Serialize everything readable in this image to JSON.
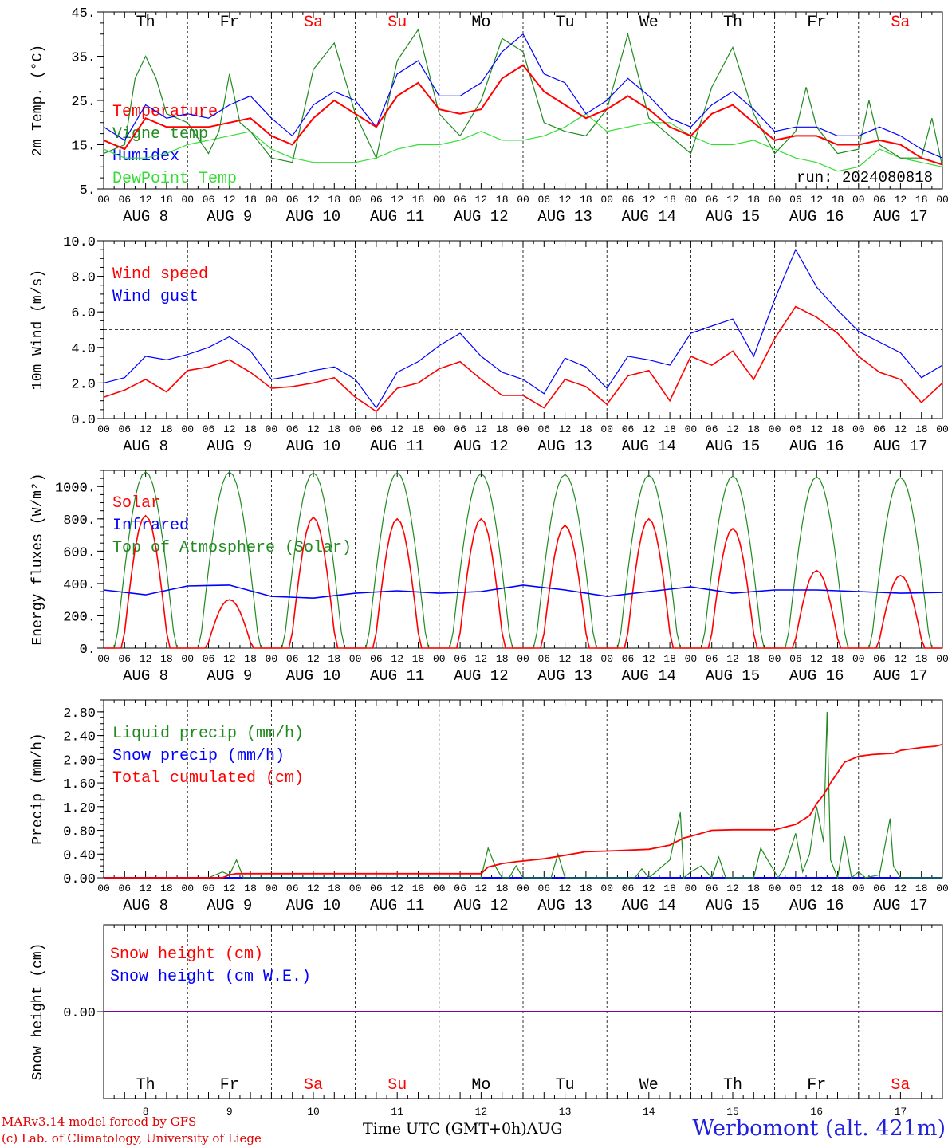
{
  "run_label": "run: 2024080818",
  "days": {
    "names": [
      "Th",
      "Fr",
      "Sa",
      "Su",
      "Mo",
      "Tu",
      "We",
      "Th",
      "Fr",
      "Sa"
    ],
    "weekend_flags": [
      false,
      false,
      true,
      true,
      false,
      false,
      false,
      false,
      false,
      true
    ],
    "date_labels": [
      "AUG  8",
      "AUG  9",
      "AUG 10",
      "AUG 11",
      "AUG 12",
      "AUG 13",
      "AUG 14",
      "AUG 15",
      "AUG 16",
      "AUG 17"
    ],
    "day_numbers": [
      "8",
      "9",
      "10",
      "11",
      "12",
      "13",
      "14",
      "15",
      "16",
      "17"
    ],
    "hour_ticks": [
      "00",
      "06",
      "12",
      "18"
    ],
    "final_hour": "00"
  },
  "colors": {
    "red": "#ff0000",
    "darkgreen": "#1f8a1f",
    "blue": "#0000ff",
    "lightgreen": "#33dd33",
    "purple": "#8000a0"
  },
  "footer": {
    "model": "MARv3.14 model forced by GFS",
    "copyright": "(c) Lab. of Climatology, University of Liege",
    "xaxis": "Time UTC (GMT+0h)",
    "month": "AUG",
    "station": "Werbomont (alt. 421m)"
  },
  "chart_data": [
    {
      "type": "line",
      "ylabel": "2m Temp. (°C)",
      "ylim": [
        5,
        45
      ],
      "yticks": [
        "5.",
        "15.",
        "25.",
        "35.",
        "45."
      ],
      "x_units": "hours since AUG 8 00 UTC",
      "series": [
        {
          "name": "Temperature",
          "color": "red",
          "x": [
            0,
            6,
            12,
            18,
            24,
            30,
            36,
            42,
            48,
            54,
            60,
            66,
            72,
            78,
            84,
            90,
            96,
            102,
            108,
            114,
            120,
            126,
            132,
            138,
            144,
            150,
            156,
            162,
            168,
            174,
            180,
            186,
            192,
            198,
            204,
            210,
            216,
            222,
            228,
            234,
            240
          ],
          "y": [
            16,
            14,
            21,
            19,
            19,
            19,
            20,
            21,
            17,
            15,
            21,
            25,
            22,
            19,
            26,
            29,
            23,
            22,
            23,
            30,
            33,
            27,
            24,
            21,
            23,
            26,
            23,
            19,
            17,
            22,
            24,
            20,
            16,
            17,
            17,
            15,
            15,
            16,
            15,
            12,
            10.5
          ]
        },
        {
          "name": "Vigne temp",
          "color": "darkgreen",
          "x": [
            0,
            6,
            9,
            12,
            15,
            18,
            24,
            30,
            33,
            36,
            39,
            42,
            48,
            54,
            60,
            66,
            72,
            78,
            84,
            90,
            96,
            102,
            108,
            114,
            120,
            126,
            132,
            138,
            144,
            150,
            156,
            162,
            168,
            174,
            180,
            186,
            192,
            198,
            201,
            204,
            210,
            216,
            219,
            222,
            228,
            234,
            237,
            240
          ],
          "y": [
            13,
            15,
            30,
            35,
            30,
            22,
            20,
            13,
            18,
            31,
            20,
            18,
            12,
            11,
            32,
            38,
            22,
            12,
            34,
            41,
            22,
            17,
            25,
            39,
            36,
            20,
            18,
            17,
            23,
            40,
            21,
            17,
            13,
            28,
            37,
            22,
            13,
            18,
            28,
            19,
            13,
            14,
            25,
            15,
            12,
            12,
            21,
            10
          ]
        },
        {
          "name": "Humidex",
          "color": "blue",
          "x": [
            0,
            6,
            12,
            18,
            24,
            30,
            36,
            42,
            48,
            54,
            60,
            66,
            72,
            78,
            84,
            90,
            96,
            102,
            108,
            114,
            120,
            126,
            132,
            138,
            144,
            150,
            156,
            162,
            168,
            174,
            180,
            186,
            192,
            198,
            204,
            210,
            216,
            222,
            228,
            234,
            240
          ],
          "y": [
            19,
            16,
            24,
            21,
            22,
            21,
            24,
            26,
            21,
            17,
            24,
            27,
            25,
            19,
            31,
            34,
            26,
            26,
            29,
            36,
            40,
            31,
            29,
            22,
            25,
            30,
            26,
            21,
            19,
            24,
            27,
            23,
            18,
            19,
            19,
            17,
            17,
            19,
            17,
            14,
            12
          ]
        },
        {
          "name": "DewPoint Temp",
          "color": "lightgreen",
          "x": [
            0,
            6,
            12,
            18,
            24,
            30,
            36,
            42,
            48,
            54,
            60,
            66,
            72,
            78,
            84,
            90,
            96,
            102,
            108,
            114,
            120,
            126,
            132,
            138,
            144,
            150,
            156,
            162,
            168,
            174,
            180,
            186,
            192,
            198,
            204,
            210,
            216,
            222,
            228,
            234,
            240
          ],
          "y": [
            14,
            12,
            12,
            13,
            15,
            16,
            17,
            18,
            14,
            12,
            11,
            11,
            11,
            12,
            14,
            15,
            15,
            16,
            18,
            16,
            16,
            17,
            19,
            22,
            18,
            19,
            20,
            20,
            17,
            15,
            15,
            16,
            14,
            12,
            11,
            9,
            10,
            14,
            12,
            11,
            10
          ]
        }
      ]
    },
    {
      "type": "line",
      "ylabel": "10m Wind (m/s)",
      "ylim": [
        0,
        10
      ],
      "yticks": [
        "0.0",
        "2.0",
        "4.0",
        "6.0",
        "8.0",
        "10.0"
      ],
      "reference_line": 5,
      "series": [
        {
          "name": "Wind speed",
          "color": "red",
          "x": [
            0,
            6,
            12,
            18,
            24,
            30,
            36,
            42,
            48,
            54,
            60,
            66,
            72,
            78,
            84,
            90,
            96,
            102,
            108,
            114,
            120,
            126,
            132,
            138,
            144,
            150,
            156,
            162,
            168,
            174,
            180,
            186,
            192,
            198,
            204,
            210,
            216,
            222,
            228,
            234,
            240
          ],
          "y": [
            1.2,
            1.6,
            2.2,
            1.5,
            2.7,
            2.9,
            3.3,
            2.6,
            1.7,
            1.8,
            2.0,
            2.3,
            1.2,
            0.4,
            1.7,
            2.0,
            2.8,
            3.2,
            2.2,
            1.3,
            1.3,
            0.6,
            2.2,
            1.8,
            0.8,
            2.4,
            2.7,
            1.0,
            3.5,
            3.0,
            3.8,
            2.2,
            4.5,
            6.3,
            5.7,
            4.8,
            3.5,
            2.6,
            2.2,
            0.9,
            2.0
          ]
        },
        {
          "name": "Wind gust",
          "color": "blue",
          "x": [
            0,
            6,
            12,
            18,
            24,
            30,
            36,
            42,
            48,
            54,
            60,
            66,
            72,
            78,
            84,
            90,
            96,
            102,
            108,
            114,
            120,
            126,
            132,
            138,
            144,
            150,
            156,
            162,
            168,
            174,
            180,
            186,
            192,
            198,
            204,
            210,
            216,
            222,
            228,
            234,
            240
          ],
          "y": [
            2.0,
            2.3,
            3.5,
            3.3,
            3.6,
            4.0,
            4.6,
            3.8,
            2.2,
            2.4,
            2.7,
            2.9,
            2.2,
            0.6,
            2.6,
            3.2,
            4.1,
            4.8,
            3.5,
            2.6,
            2.2,
            1.4,
            3.4,
            2.9,
            1.7,
            3.5,
            3.3,
            3.0,
            4.8,
            5.2,
            5.6,
            3.5,
            6.7,
            9.5,
            7.4,
            6.1,
            4.9,
            4.3,
            3.7,
            2.3,
            3.0
          ]
        }
      ]
    },
    {
      "type": "line",
      "ylabel": "Energy fluxes (W/m²)",
      "ylim": [
        0,
        1100
      ],
      "yticks": [
        "0.",
        "200.",
        "400.",
        "600.",
        "800.",
        "1000."
      ],
      "series": [
        {
          "name": "Solar",
          "color": "red",
          "daily_peak": [
            820,
            300,
            810,
            800,
            800,
            760,
            800,
            740,
            480,
            450
          ]
        },
        {
          "name": "Infrared",
          "color": "blue",
          "x": [
            0,
            12,
            24,
            36,
            48,
            60,
            72,
            84,
            96,
            108,
            120,
            132,
            144,
            156,
            168,
            180,
            192,
            204,
            216,
            228,
            240
          ],
          "y": [
            360,
            330,
            385,
            390,
            320,
            310,
            340,
            355,
            340,
            350,
            390,
            360,
            320,
            350,
            380,
            340,
            360,
            360,
            350,
            340,
            345
          ]
        },
        {
          "name": "Top of Atmosphere (Solar)",
          "color": "darkgreen",
          "daily_peak": [
            1090,
            1090,
            1085,
            1085,
            1080,
            1075,
            1070,
            1065,
            1060,
            1055
          ]
        }
      ]
    },
    {
      "type": "line",
      "ylabel": "Precip (mm/h)",
      "ylim": [
        0,
        3.0
      ],
      "yticks": [
        "0.00",
        "0.40",
        "0.80",
        "1.20",
        "1.60",
        "2.00",
        "2.40",
        "2.80"
      ],
      "series": [
        {
          "name": "Liquid precip (mm/h)",
          "color": "darkgreen",
          "x": [
            0,
            30,
            34,
            36,
            38,
            40,
            42,
            108,
            110,
            112,
            114,
            116,
            118,
            120,
            126,
            128,
            130,
            132,
            136,
            138,
            140,
            152,
            154,
            156,
            162,
            165,
            166,
            168,
            171,
            174,
            176,
            178,
            186,
            188,
            190,
            193,
            195,
            198,
            200,
            202,
            204,
            206,
            207,
            208,
            210,
            212,
            214,
            216,
            218,
            222,
            225,
            226,
            228,
            231,
            234,
            238,
            240
          ],
          "y": [
            0,
            0,
            0.1,
            0.05,
            0.3,
            0,
            0,
            0,
            0.5,
            0.2,
            0,
            0,
            0.2,
            0,
            0,
            0,
            0.4,
            0,
            0,
            0,
            0,
            0,
            0.15,
            0,
            0.3,
            1.1,
            0,
            0.1,
            0.2,
            0,
            0.35,
            0,
            0,
            0.5,
            0.3,
            0,
            0.2,
            0.75,
            0.1,
            0.4,
            1.2,
            0.6,
            2.8,
            0.3,
            0,
            0.7,
            0,
            0.1,
            0,
            0.05,
            1.0,
            0.2,
            0,
            0,
            0,
            0,
            0
          ]
        },
        {
          "name": "Snow precip (mm/h)",
          "color": "blue",
          "x": [
            0,
            240
          ],
          "y": [
            0,
            0
          ]
        },
        {
          "name": "Total cumulated (cm)",
          "color": "red",
          "x": [
            0,
            34,
            36,
            38,
            108,
            110,
            114,
            118,
            126,
            132,
            138,
            144,
            156,
            162,
            166,
            168,
            174,
            180,
            192,
            198,
            202,
            204,
            206,
            208,
            212,
            216,
            220,
            226,
            228,
            234,
            238,
            240
          ],
          "y": [
            0,
            0,
            0.05,
            0.07,
            0.07,
            0.18,
            0.24,
            0.27,
            0.32,
            0.38,
            0.44,
            0.45,
            0.48,
            0.55,
            0.67,
            0.7,
            0.8,
            0.81,
            0.81,
            0.9,
            1.05,
            1.25,
            1.4,
            1.6,
            1.95,
            2.05,
            2.08,
            2.1,
            2.15,
            2.2,
            2.22,
            2.25
          ]
        }
      ]
    },
    {
      "type": "line",
      "ylabel": "Snow height (cm)",
      "yticks": [
        "0.00"
      ],
      "series": [
        {
          "name": "Snow height (cm)",
          "color": "red",
          "x": [
            0,
            240
          ],
          "y": [
            0,
            0
          ]
        },
        {
          "name": "Snow height (cm W.E.)",
          "color": "blue",
          "x": [
            0,
            240
          ],
          "y": [
            0,
            0
          ]
        }
      ]
    }
  ]
}
